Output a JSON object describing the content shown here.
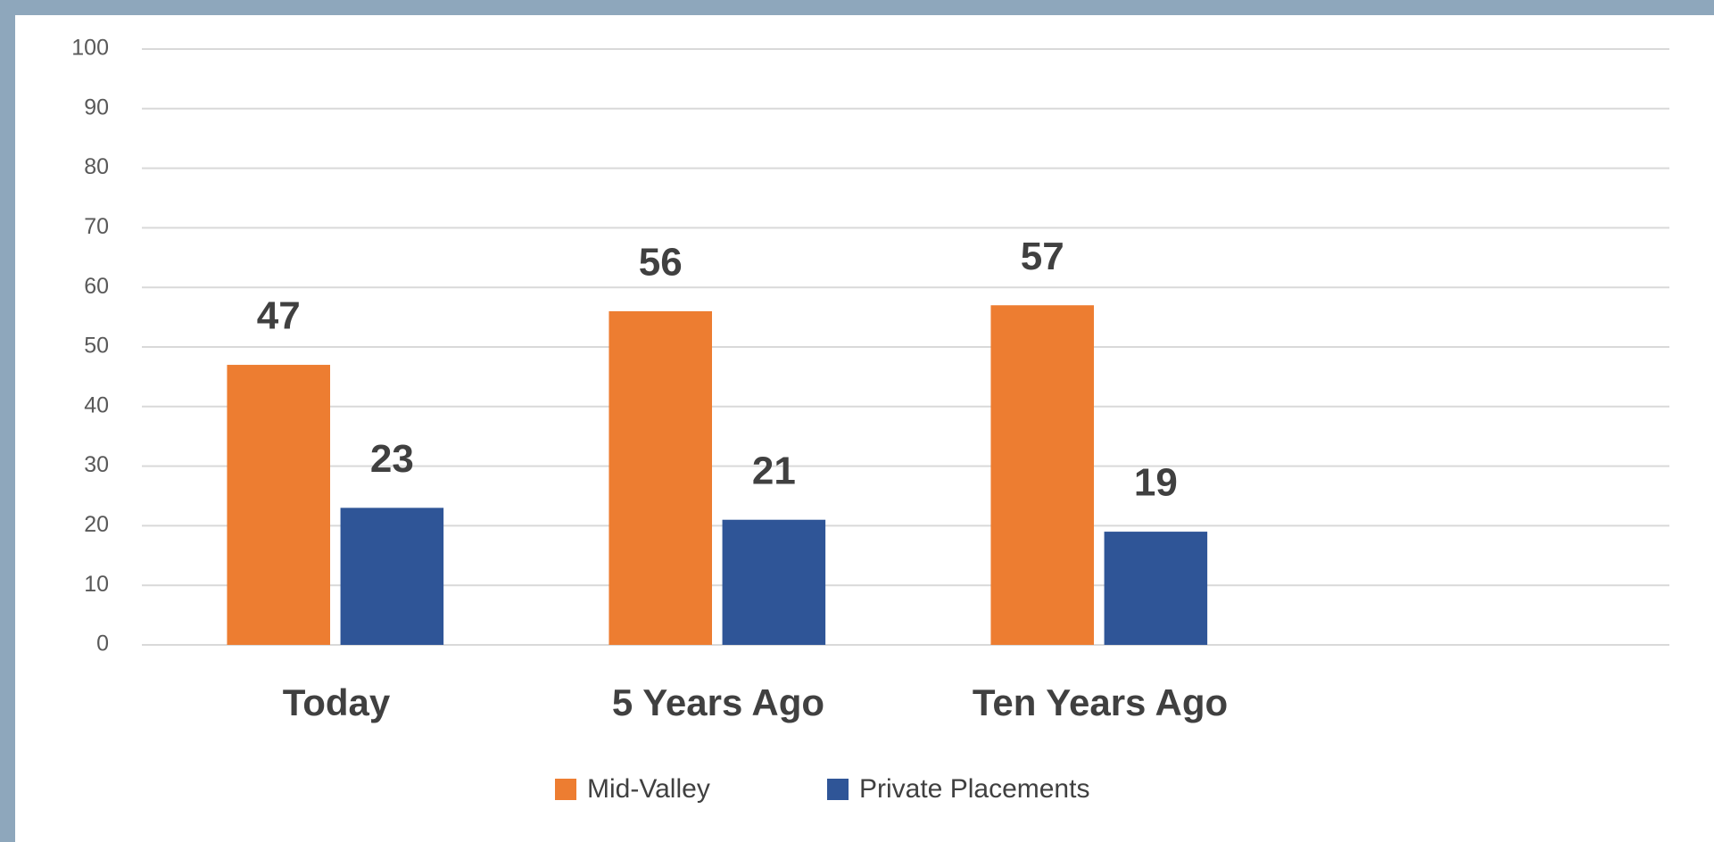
{
  "chart_data": {
    "type": "bar",
    "categories": [
      "Today",
      "5 Years Ago",
      "Ten Years Ago",
      null
    ],
    "series": [
      {
        "name": "Mid-Valley",
        "color": "#ed7d31",
        "values": [
          47,
          56,
          57,
          null
        ]
      },
      {
        "name": "Private Placements",
        "color": "#2f5597",
        "values": [
          23,
          21,
          19,
          null
        ]
      }
    ],
    "ylim": [
      0,
      100
    ],
    "yticks": [
      0,
      10,
      20,
      30,
      40,
      50,
      60,
      70,
      80,
      90,
      100
    ],
    "grid": true,
    "legend": "bottom"
  }
}
